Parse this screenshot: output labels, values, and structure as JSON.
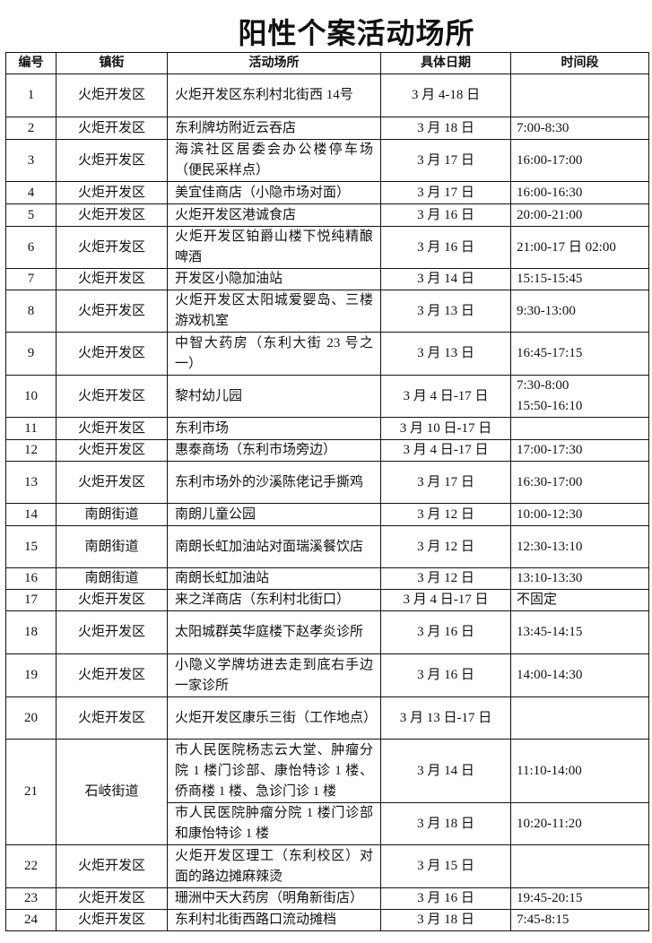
{
  "title": "阳性个案活动场所",
  "headers": [
    "编号",
    "镇街",
    "活动场所",
    "具体日期",
    "时间段"
  ],
  "rows": [
    {
      "no": "1",
      "district": "火炬开发区",
      "entries": [
        {
          "place": "火炬开发区东利村北街西 14号",
          "date": "3 月 4-18 日",
          "time": ""
        }
      ]
    },
    {
      "no": "2",
      "district": "火炬开发区",
      "entries": [
        {
          "place": "东利牌坊附近云吞店",
          "date": "3 月 18 日",
          "time": "7:00-8:30"
        }
      ]
    },
    {
      "no": "3",
      "district": "火炬开发区",
      "entries": [
        {
          "place": "海滨社区居委会办公楼停车场（便民采样点）",
          "date": "3 月 17 日",
          "time": "16:00-17:00"
        }
      ]
    },
    {
      "no": "4",
      "district": "火炬开发区",
      "entries": [
        {
          "place": "美宜佳商店（小隐市场对面）",
          "date": "3 月 17 日",
          "time": "16:00-16:30"
        }
      ]
    },
    {
      "no": "5",
      "district": "火炬开发区",
      "entries": [
        {
          "place": "火炬开发区港诚食店",
          "date": "3 月 16 日",
          "time": "20:00-21:00"
        }
      ]
    },
    {
      "no": "6",
      "district": "火炬开发区",
      "entries": [
        {
          "place": "火炬开发区铂爵山楼下悦纯精酿啤酒",
          "date": "3 月 16 日",
          "time": "21:00-17 日 02:00"
        }
      ]
    },
    {
      "no": "7",
      "district": "火炬开发区",
      "entries": [
        {
          "place": "开发区小隐加油站",
          "date": "3 月 14 日",
          "time": "15:15-15:45"
        }
      ]
    },
    {
      "no": "8",
      "district": "火炬开发区",
      "entries": [
        {
          "place": "火炬开发区太阳城爱婴岛、三楼游戏机室",
          "date": "3 月 13 日",
          "time": "9:30-13:00"
        }
      ]
    },
    {
      "no": "9",
      "district": "火炬开发区",
      "entries": [
        {
          "place": "中智大药房（东利大街 23 号之一）",
          "date": "3 月 13 日",
          "time": "16:45-17:15"
        }
      ]
    },
    {
      "no": "10",
      "district": "火炬开发区",
      "entries": [
        {
          "place": "黎村幼儿园",
          "date": "3 月 4 日-17 日",
          "time": "7:30-8:00\n15:50-16:10"
        }
      ]
    },
    {
      "no": "11",
      "district": "火炬开发区",
      "entries": [
        {
          "place": "东利市场",
          "date": "3 月 10 日-17 日",
          "time": ""
        }
      ]
    },
    {
      "no": "12",
      "district": "火炬开发区",
      "entries": [
        {
          "place": "惠泰商场（东利市场旁边）",
          "date": "3 月 4 日-17 日",
          "time": "17:00-17:30"
        }
      ]
    },
    {
      "no": "13",
      "district": "火炬开发区",
      "entries": [
        {
          "place": "东利市场外的沙溪陈佬记手撕鸡",
          "date": "3 月 17 日",
          "time": "16:30-17:00"
        }
      ]
    },
    {
      "no": "14",
      "district": "南朗街道",
      "entries": [
        {
          "place": "南朗儿童公园",
          "date": "3 月 12 日",
          "time": "10:00-12:30"
        }
      ]
    },
    {
      "no": "15",
      "district": "南朗街道",
      "entries": [
        {
          "place": "南朗长虹加油站对面瑞溪餐饮店",
          "date": "3 月 12 日",
          "time": "12:30-13:10"
        }
      ]
    },
    {
      "no": "16",
      "district": "南朗街道",
      "entries": [
        {
          "place": "南朗长虹加油站",
          "date": "3 月 12 日",
          "time": "13:10-13:30"
        }
      ]
    },
    {
      "no": "17",
      "district": "火炬开发区",
      "entries": [
        {
          "place": "来之洋商店（东利村北街口）",
          "date": "3 月 4 日-17 日",
          "time": "不固定"
        }
      ]
    },
    {
      "no": "18",
      "district": "火炬开发区",
      "entries": [
        {
          "place": "太阳城群英华庭楼下赵孝炎诊所",
          "date": "3 月 16 日",
          "time": "13:45-14:15"
        }
      ]
    },
    {
      "no": "19",
      "district": "火炬开发区",
      "entries": [
        {
          "place": "小隐义学牌坊进去走到底右手边一家诊所",
          "date": "3 月 16 日",
          "time": "14:00-14:30"
        }
      ]
    },
    {
      "no": "20",
      "district": "火炬开发区",
      "entries": [
        {
          "place": "火炬开发区康乐三街（工作地点）",
          "date": "3 月 13 日-17 日",
          "time": ""
        }
      ]
    },
    {
      "no": "21",
      "district": "石岐街道",
      "entries": [
        {
          "place": "市人民医院杨志云大堂、肿瘤分院 1 楼门诊部、康怡特诊 1 楼、侨商楼 1 楼、急诊门诊 1 楼",
          "date": "3 月 14 日",
          "time": "11:10-14:00"
        },
        {
          "place": "市人民医院肿瘤分院 1 楼门诊部和康怡特诊 1 楼",
          "date": "3 月 18 日",
          "time": "10:20-11:20"
        }
      ]
    },
    {
      "no": "22",
      "district": "火炬开发区",
      "entries": [
        {
          "place": "火炬开发区理工（东利校区）对面的路边摊麻辣烫",
          "date": "3 月 15 日",
          "time": ""
        }
      ]
    },
    {
      "no": "23",
      "district": "火炬开发区",
      "entries": [
        {
          "place": "珊洲中天大药房（明角新街店）",
          "date": "3 月 16 日",
          "time": "19:45-20:15"
        }
      ]
    },
    {
      "no": "24",
      "district": "火炬开发区",
      "entries": [
        {
          "place": "东利村北街西路口流动摊档",
          "date": "3 月 18 日",
          "time": "7:45-8:15"
        }
      ]
    }
  ]
}
